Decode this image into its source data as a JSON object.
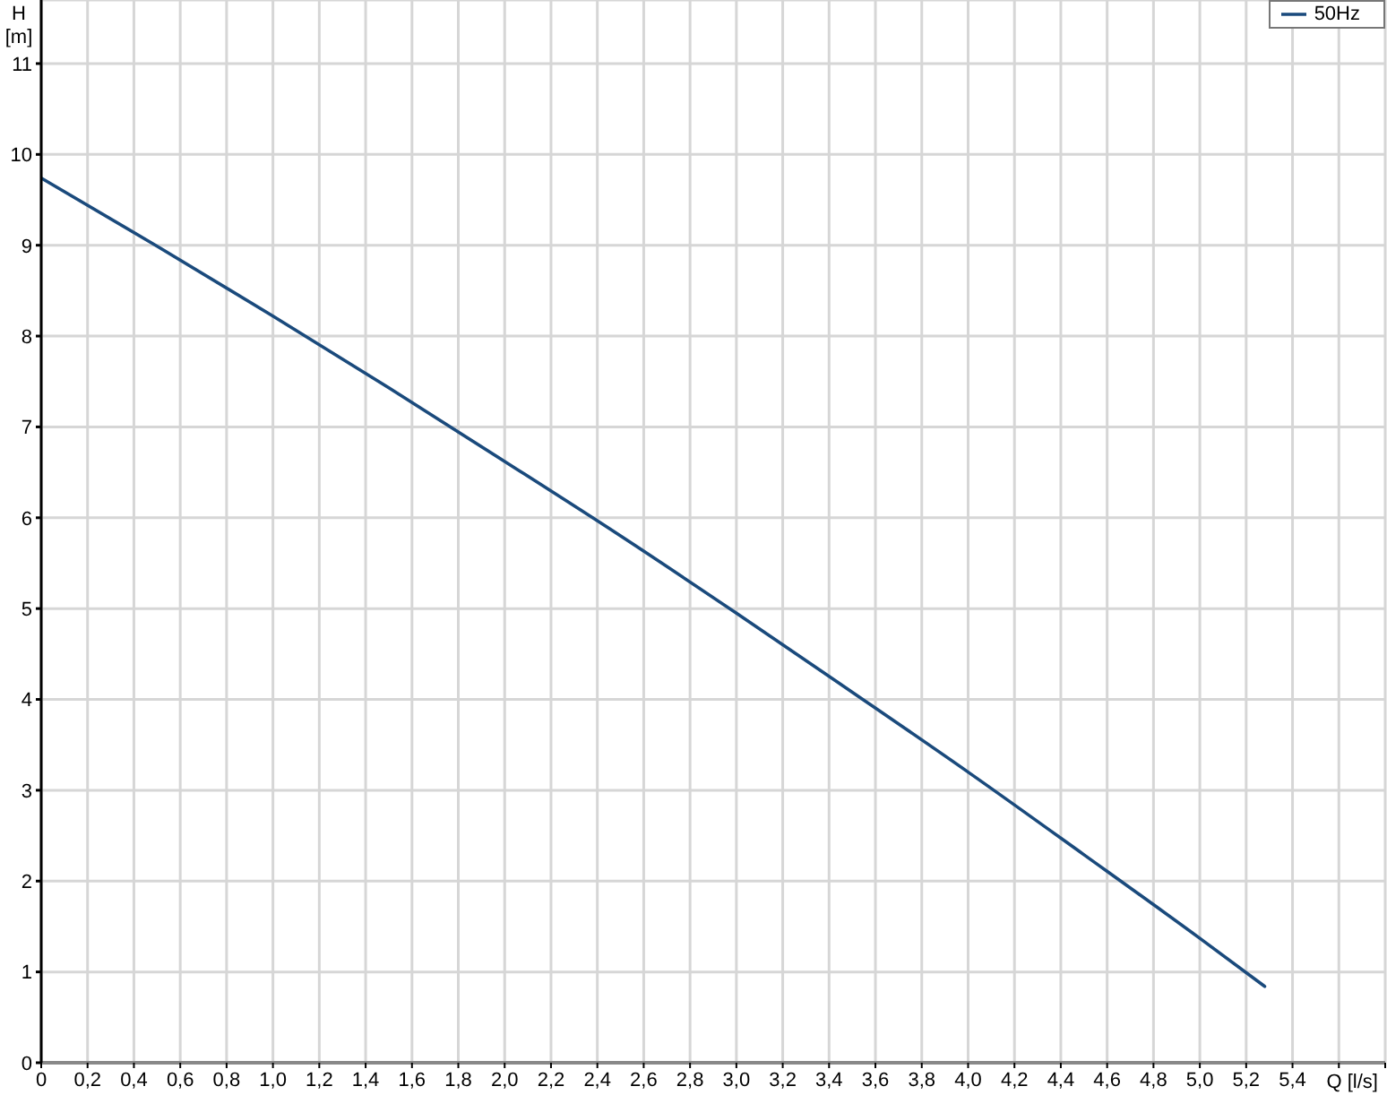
{
  "chart_data": {
    "type": "line",
    "xlabel": "Q [l/s]",
    "ylabel": "H [m]",
    "x": [
      0,
      0.5,
      1,
      1.5,
      2,
      2.5,
      3,
      3.5,
      4,
      4.5,
      5,
      5.28
    ],
    "series": [
      {
        "name": "50Hz",
        "color": "#1a4a7c",
        "values": [
          9.74,
          8.99,
          8.22,
          7.43,
          6.62,
          5.8,
          4.95,
          4.08,
          3.2,
          2.29,
          1.37,
          0.84
        ]
      }
    ],
    "xlim": [
      0,
      5.8
    ],
    "xticks": [
      0,
      {
        "value": 0.2,
        "label": "0,2"
      },
      {
        "value": 0.4,
        "label": "0,4"
      },
      {
        "value": 0.6,
        "label": "0,6"
      },
      {
        "value": 0.8,
        "label": "0,8"
      },
      {
        "value": 1,
        "label": "1,0"
      },
      {
        "value": 1.2,
        "label": "1,2"
      },
      {
        "value": 1.4,
        "label": "1,4"
      },
      {
        "value": 1.6,
        "label": "1,6"
      },
      {
        "value": 1.8,
        "label": "1,8"
      },
      {
        "value": 2,
        "label": "2,0"
      },
      {
        "value": 2.2,
        "label": "2,2"
      },
      {
        "value": 2.4,
        "label": "2,4"
      },
      {
        "value": 2.6,
        "label": "2,6"
      },
      {
        "value": 2.8,
        "label": "2,8"
      },
      {
        "value": 3,
        "label": "3,0"
      },
      {
        "value": 3.2,
        "label": "3,2"
      },
      {
        "value": 3.4,
        "label": "3,4"
      },
      {
        "value": 3.6,
        "label": "3,6"
      },
      {
        "value": 3.8,
        "label": "3,8"
      },
      {
        "value": 4,
        "label": "4,0"
      },
      {
        "value": 4.2,
        "label": "4,2"
      },
      {
        "value": 4.4,
        "label": "4,4"
      },
      {
        "value": 4.6,
        "label": "4,6"
      },
      {
        "value": 4.8,
        "label": "4,8"
      },
      {
        "value": 5,
        "label": "5,0"
      },
      {
        "value": 5.2,
        "label": "5,2"
      },
      {
        "value": 5.4,
        "label": "5,4"
      },
      {
        "value": 5.6,
        "label": null
      },
      {
        "value": 5.8,
        "label": null
      }
    ],
    "ylim": [
      0,
      11.7
    ],
    "yticks": [
      0,
      1,
      2,
      3,
      4,
      5,
      6,
      7,
      8,
      9,
      10,
      11
    ],
    "grid": true,
    "legend": "top right"
  }
}
